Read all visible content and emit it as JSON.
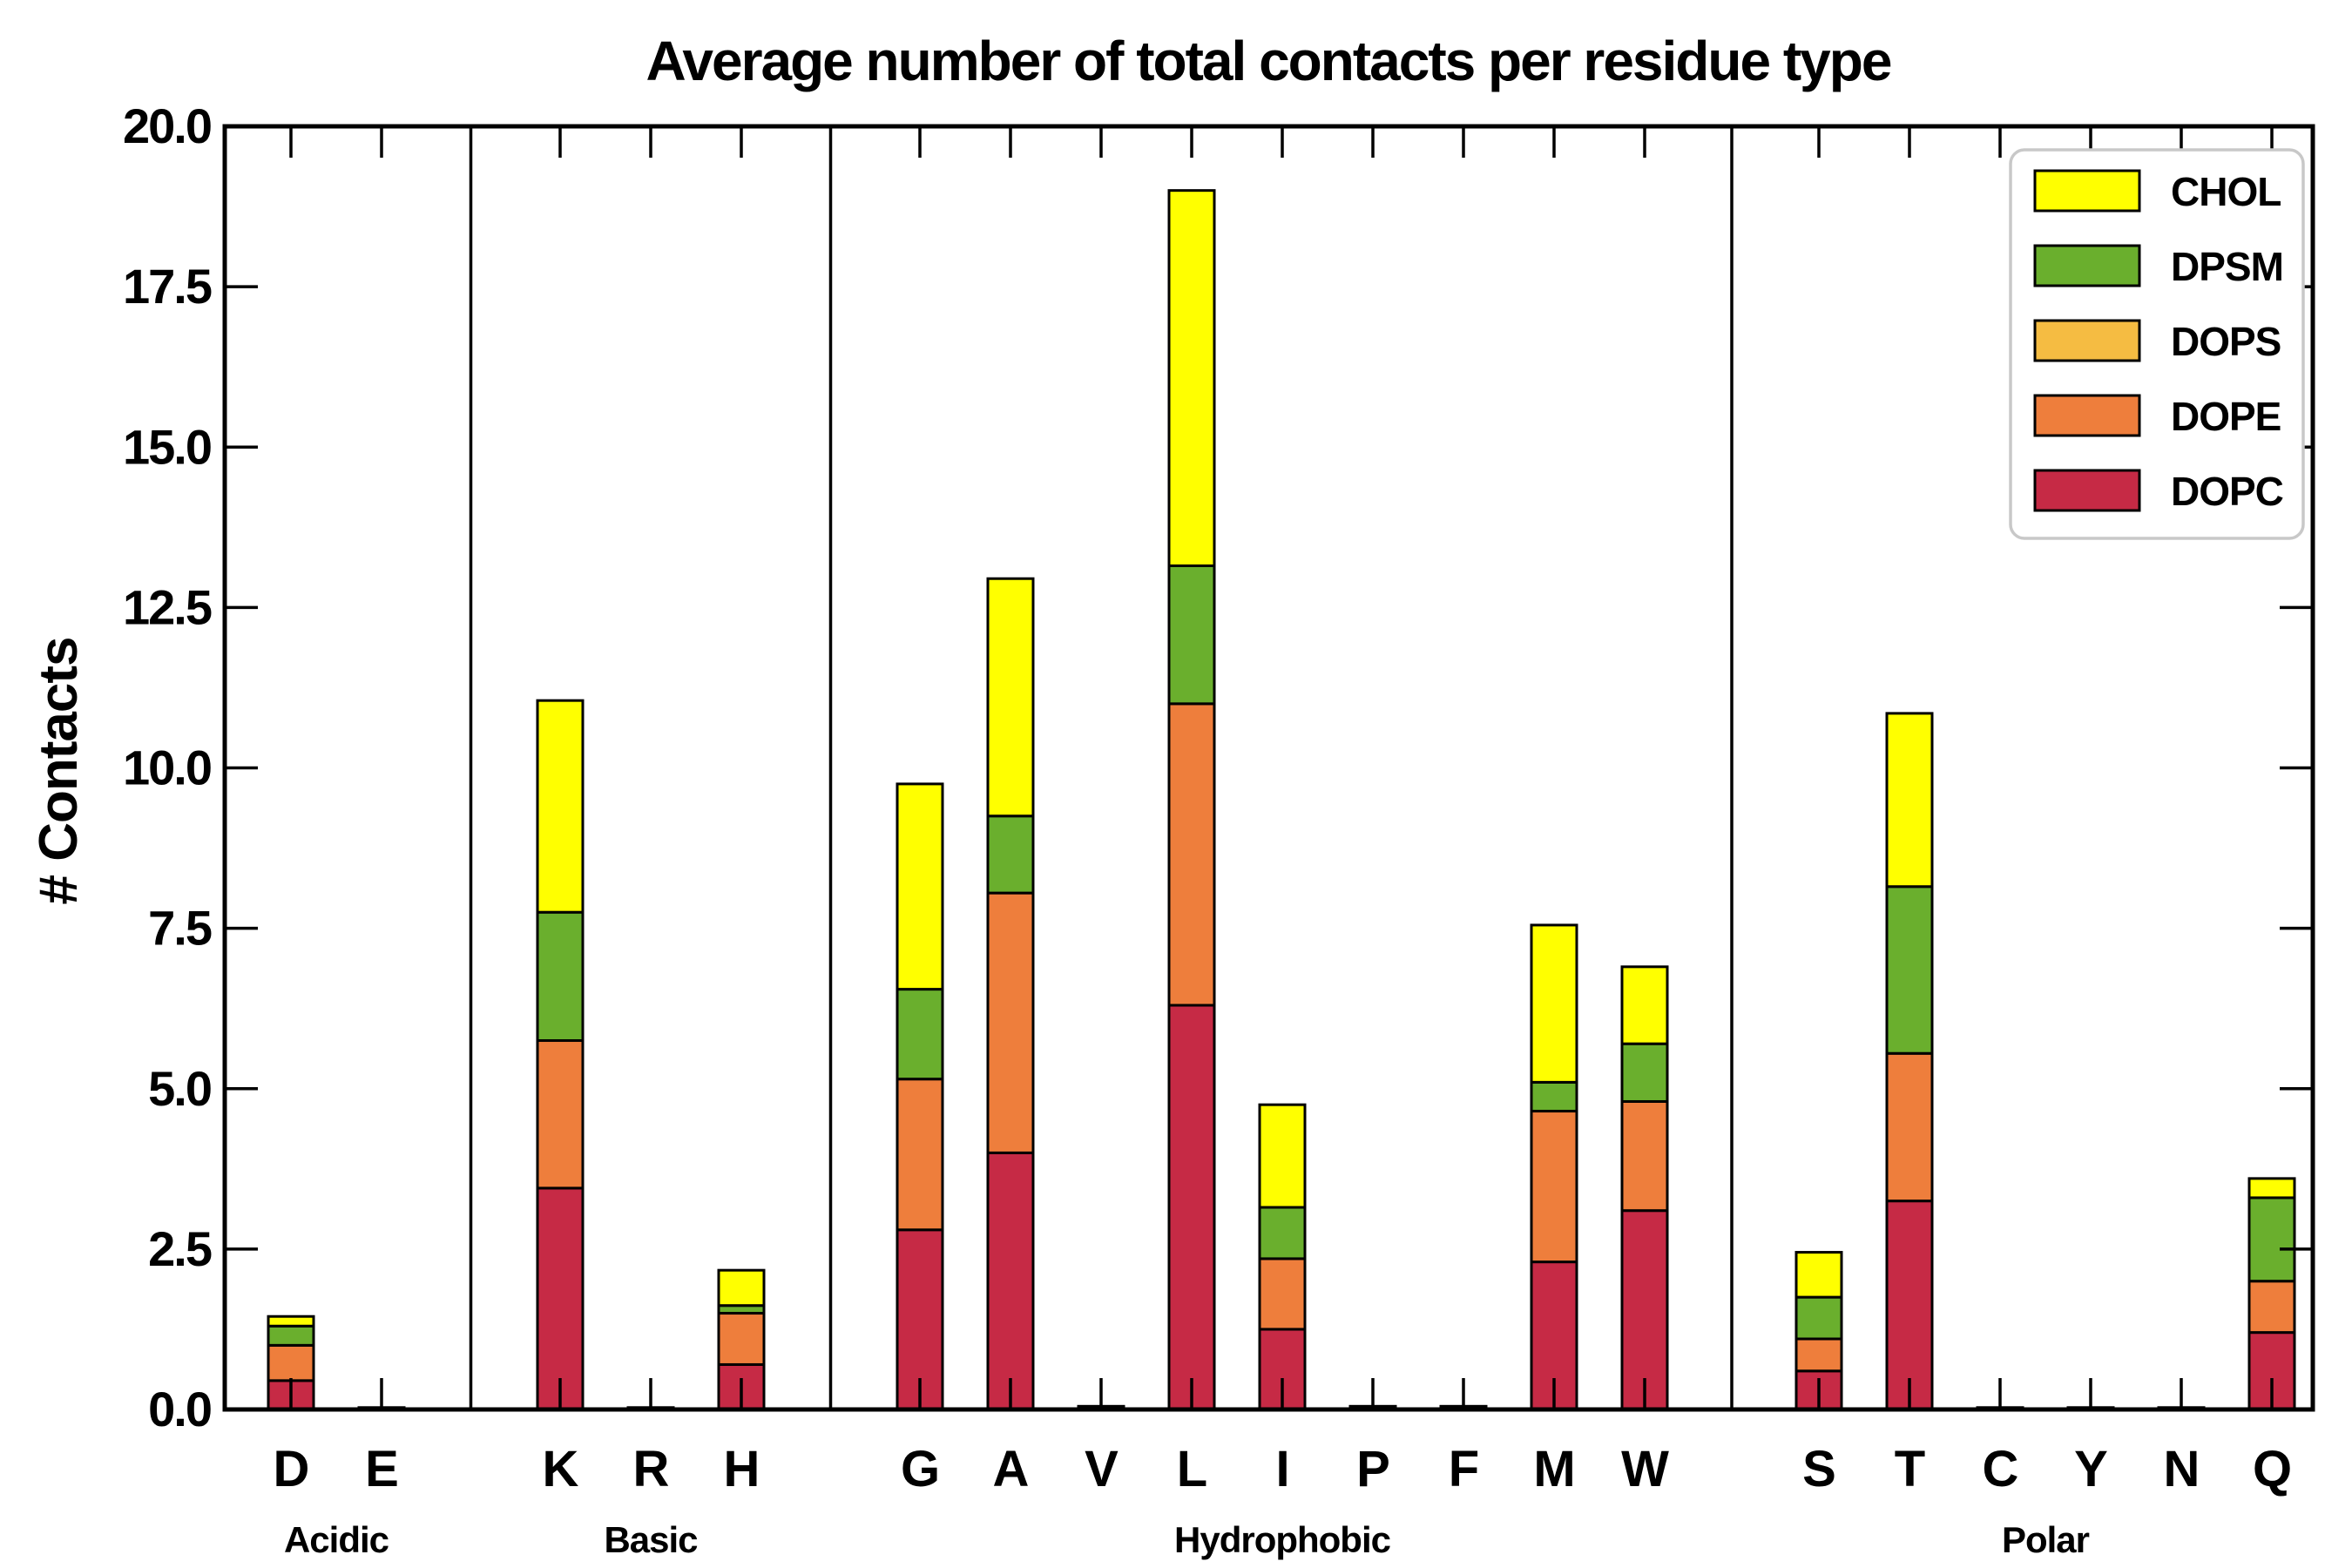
{
  "title": "Average number of total contacts per residue type",
  "ylabel": "# Contacts",
  "chart_data": {
    "type": "bar",
    "stacked": true,
    "grid": false,
    "background": "#ffffff",
    "axis_color": "#000000",
    "bar_edge_color": "#000000",
    "ylim": [
      0,
      20
    ],
    "ytick_step": 2.5,
    "ytick_labels": [
      "0.0",
      "2.5",
      "5.0",
      "7.5",
      "10.0",
      "12.5",
      "15.0",
      "17.5",
      "20.0"
    ],
    "categories": [
      "D",
      "E",
      "K",
      "R",
      "H",
      "G",
      "A",
      "V",
      "L",
      "I",
      "P",
      "F",
      "M",
      "W",
      "S",
      "T",
      "C",
      "Y",
      "N",
      "Q"
    ],
    "groups": [
      {
        "label": "Acidic",
        "categories": [
          "D",
          "E"
        ]
      },
      {
        "label": "Basic",
        "categories": [
          "K",
          "R",
          "H"
        ]
      },
      {
        "label": "Hydrophobic",
        "categories": [
          "G",
          "A",
          "V",
          "L",
          "I",
          "P",
          "F",
          "M",
          "W"
        ]
      },
      {
        "label": "Polar",
        "categories": [
          "S",
          "T",
          "C",
          "Y",
          "N",
          "Q"
        ]
      }
    ],
    "series": [
      {
        "name": "DOPC",
        "color": "#c62a45",
        "values": [
          0.45,
          0.02,
          3.45,
          0.02,
          0.7,
          2.8,
          4.0,
          0.03,
          6.3,
          1.25,
          0.03,
          0.03,
          2.3,
          3.1,
          0.6,
          3.25,
          0.02,
          0.02,
          0.02,
          1.2
        ]
      },
      {
        "name": "DOPE",
        "color": "#ee7e3c",
        "values": [
          0.55,
          0.01,
          2.3,
          0.01,
          0.8,
          2.35,
          4.05,
          0.02,
          4.7,
          1.1,
          0.02,
          0.02,
          2.35,
          1.7,
          0.5,
          2.3,
          0.01,
          0.01,
          0.01,
          0.8
        ]
      },
      {
        "name": "DOPS",
        "color": "#f5bc42",
        "values": [
          0,
          0,
          0,
          0,
          0,
          0,
          0,
          0,
          0,
          0,
          0,
          0,
          0,
          0,
          0,
          0,
          0,
          0,
          0,
          0
        ]
      },
      {
        "name": "DPSM",
        "color": "#6aaf2d",
        "values": [
          0.3,
          0,
          2.0,
          0,
          0.12,
          1.4,
          1.2,
          0,
          2.15,
          0.8,
          0,
          0,
          0.45,
          0.9,
          0.65,
          2.6,
          0,
          0,
          0,
          1.3
        ]
      },
      {
        "name": "CHOL",
        "color": "#ffff00",
        "values": [
          0.15,
          0,
          3.3,
          0,
          0.55,
          3.2,
          3.7,
          0,
          5.85,
          1.6,
          0,
          0,
          2.45,
          1.2,
          0.7,
          2.7,
          0,
          0,
          0,
          0.3
        ]
      }
    ],
    "legend": {
      "position": "upper right",
      "order_top_to_bottom": [
        "CHOL",
        "DPSM",
        "DOPS",
        "DOPE",
        "DOPC"
      ],
      "border_color": "#c8c8c8",
      "fill": "#ffffff"
    },
    "totals_note": {
      "D": 1.45,
      "E": 0.03,
      "K": 11.05,
      "R": 0.03,
      "H": 2.17,
      "G": 9.75,
      "A": 12.95,
      "V": 0.05,
      "L": 19.0,
      "I": 4.75,
      "P": 0.05,
      "F": 0.05,
      "M": 7.55,
      "W": 6.9,
      "S": 2.45,
      "T": 10.85,
      "C": 0.03,
      "Y": 0.03,
      "N": 0.03,
      "Q": 3.6
    }
  }
}
